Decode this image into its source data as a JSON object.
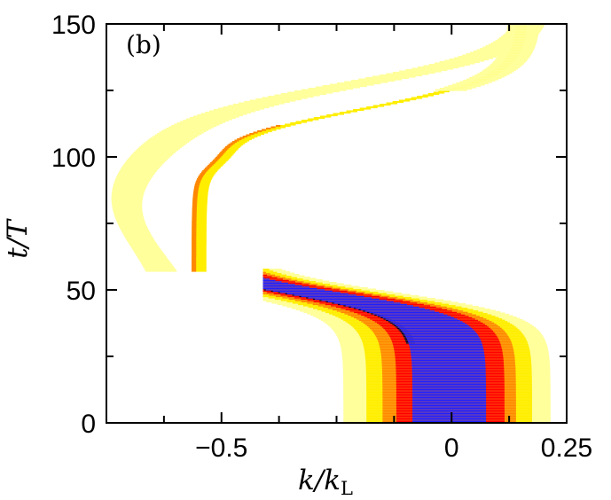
{
  "chart_data": {
    "type": "heatmap",
    "panel_label": "(b)",
    "xlabel": "k/k",
    "xlabel_subscript": "L",
    "ylabel": "t/T",
    "xlim": [
      -0.75,
      0.25
    ],
    "ylim": [
      0,
      150
    ],
    "xticks": [
      {
        "value": -0.5,
        "label": "−0.5"
      },
      {
        "value": 0,
        "label": "0"
      },
      {
        "value": 0.25,
        "label": "0.25"
      }
    ],
    "yticks": [
      {
        "value": 0,
        "label": "0"
      },
      {
        "value": 50,
        "label": "50"
      },
      {
        "value": 100,
        "label": "100"
      },
      {
        "value": 150,
        "label": "150"
      }
    ],
    "colors": {
      "pale": "#ffff9c",
      "yellow": "#ffee00",
      "orange": "#ff8800",
      "red": "#ff0000",
      "blue": "#2020ff",
      "dark": "#000030"
    },
    "description_bands": {
      "main_wavepacket": {
        "t_range": [
          0,
          58
        ],
        "center_k_start": 0.0,
        "center_k_end": -0.59
      },
      "faint_trail": {
        "t_range": [
          57,
          150
        ]
      }
    }
  }
}
